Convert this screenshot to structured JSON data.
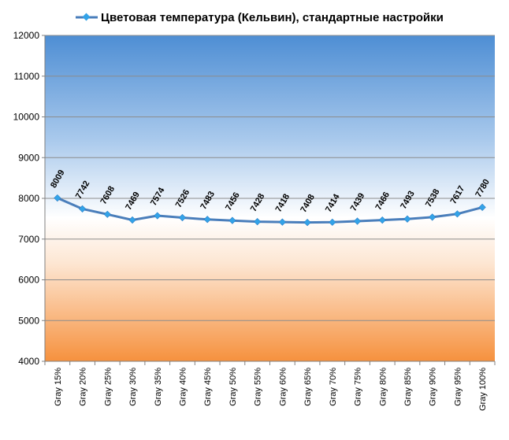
{
  "chart_data": {
    "type": "line",
    "title": "",
    "xlabel": "",
    "ylabel": "",
    "ylim": [
      4000,
      12000
    ],
    "yticks": [
      4000,
      5000,
      6000,
      7000,
      8000,
      9000,
      10000,
      11000,
      12000
    ],
    "grid": true,
    "legend_position": "top",
    "categories": [
      "Gray 15%",
      "Gray 20%",
      "Gray 25%",
      "Gray 30%",
      "Gray 35%",
      "Gray 40%",
      "Gray 45%",
      "Gray 50%",
      "Gray 55%",
      "Gray 60%",
      "Gray 65%",
      "Gray 70%",
      "Gray 75%",
      "Gray 80%",
      "Gray 85%",
      "Gray 90%",
      "Gray 95%",
      "Gray 100%"
    ],
    "series": [
      {
        "name": "Цветовая температура (Кельвин), стандартные настройки",
        "color": "#4a7ebb",
        "values": [
          8009,
          7742,
          7608,
          7469,
          7574,
          7526,
          7483,
          7456,
          7428,
          7418,
          7408,
          7414,
          7439,
          7466,
          7493,
          7538,
          7617,
          7780
        ]
      }
    ],
    "colors": {
      "background_top": "#4f8ed3",
      "background_mid": "#ffffff",
      "background_bottom": "#f79646",
      "gridline": "#8c8c8c",
      "marker": "#33a3e8"
    }
  }
}
